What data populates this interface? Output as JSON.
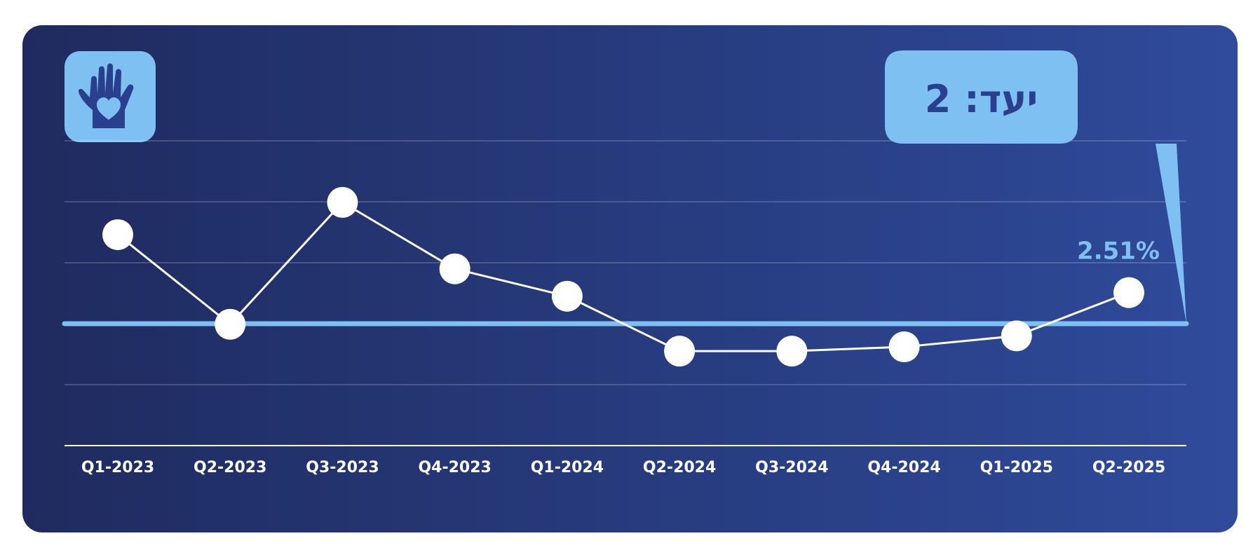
{
  "icon": "hand-heart-icon",
  "colors": {
    "background_start": "#1f2b5f",
    "background_end": "#2f4b9b",
    "accent": "#7fc0f3",
    "line": "#ffffff",
    "goal_text": "#2a3f8e"
  },
  "goal": {
    "label": "יעד: 2",
    "value": 2
  },
  "chart_data": {
    "type": "line",
    "categories": [
      "Q1-2023",
      "Q2-2023",
      "Q3-2023",
      "Q4-2023",
      "Q1-2024",
      "Q2-2024",
      "Q3-2024",
      "Q4-2024",
      "Q1-2025",
      "Q2-2025"
    ],
    "series": [
      {
        "values": [
          3.46,
          1.99,
          3.99,
          2.9,
          2.45,
          1.55,
          1.55,
          1.62,
          1.8,
          2.51
        ]
      }
    ],
    "reference_line": 2,
    "value_label": "2.51%",
    "ylim": [
      0,
      5
    ],
    "grid": true,
    "title": "",
    "xlabel": "",
    "ylabel": ""
  }
}
